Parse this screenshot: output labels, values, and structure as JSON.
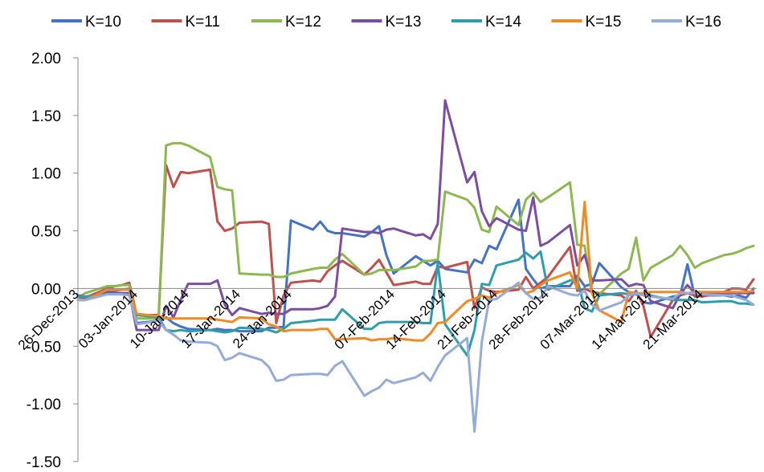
{
  "chart_data": {
    "type": "line",
    "title": "",
    "xlabel": "",
    "ylabel": "",
    "ylim": [
      -1.5,
      2.0
    ],
    "ytick_step": 0.5,
    "grid": false,
    "legend_position": "top",
    "x": [
      "2013-12-26",
      "2013-12-27",
      "2013-12-30",
      "2013-12-31",
      "2014-01-01",
      "2014-01-02",
      "2014-01-03",
      "2014-01-06",
      "2014-01-07",
      "2014-01-08",
      "2014-01-09",
      "2014-01-10",
      "2014-01-13",
      "2014-01-14",
      "2014-01-15",
      "2014-01-16",
      "2014-01-17",
      "2014-01-20",
      "2014-01-21",
      "2014-01-22",
      "2014-01-23",
      "2014-01-24",
      "2014-01-27",
      "2014-01-28",
      "2014-01-29",
      "2014-01-30",
      "2014-01-31",
      "2014-02-03",
      "2014-02-04",
      "2014-02-05",
      "2014-02-06",
      "2014-02-07",
      "2014-02-10",
      "2014-02-11",
      "2014-02-12",
      "2014-02-13",
      "2014-02-14",
      "2014-02-17",
      "2014-02-18",
      "2014-02-19",
      "2014-02-20",
      "2014-02-21",
      "2014-02-24",
      "2014-02-25",
      "2014-02-26",
      "2014-02-27",
      "2014-02-28",
      "2014-03-03",
      "2014-03-04",
      "2014-03-05",
      "2014-03-06",
      "2014-03-07",
      "2014-03-10",
      "2014-03-11",
      "2014-03-12",
      "2014-03-13",
      "2014-03-14",
      "2014-03-17",
      "2014-03-18",
      "2014-03-19",
      "2014-03-20",
      "2014-03-21",
      "2014-03-24",
      "2014-03-25",
      "2014-03-26",
      "2014-03-27",
      "2014-03-28"
    ],
    "x_tick_labels": [
      {
        "date": "2013-12-26",
        "label": "26-Dec-2013"
      },
      {
        "date": "2014-01-03",
        "label": "03-Jan-2014"
      },
      {
        "date": "2014-01-10",
        "label": "10-Jan-2014"
      },
      {
        "date": "2014-01-17",
        "label": "17-Jan-2014"
      },
      {
        "date": "2014-01-24",
        "label": "24-Jan-2014"
      },
      {
        "date": "2014-02-07",
        "label": "07-Feb-2014"
      },
      {
        "date": "2014-02-14",
        "label": "14-Feb-2014"
      },
      {
        "date": "2014-02-21",
        "label": "21-Feb-2014"
      },
      {
        "date": "2014-02-28",
        "label": "28-Feb-2014"
      },
      {
        "date": "2014-03-07",
        "label": "07-Mar-2014"
      },
      {
        "date": "2014-03-14",
        "label": "14-Mar-2014"
      },
      {
        "date": "2014-03-21",
        "label": "21-Mar-2014"
      }
    ],
    "y_tick_labels": [
      "-1.50",
      "-1.00",
      "-0.50",
      "0.00",
      "0.50",
      "1.00",
      "1.50",
      "2.00"
    ],
    "series": [
      {
        "name": "K=10",
        "color": "#4472c4",
        "values": [
          -0.07,
          -0.08,
          -0.03,
          -0.02,
          -0.01,
          0.0,
          -0.3,
          -0.28,
          -0.25,
          -0.3,
          -0.33,
          -0.35,
          -0.36,
          -0.35,
          -0.36,
          -0.36,
          -0.37,
          -0.37,
          -0.34,
          -0.34,
          -0.33,
          0.59,
          0.51,
          0.58,
          0.5,
          0.48,
          0.48,
          0.45,
          0.49,
          0.54,
          0.29,
          0.13,
          0.28,
          0.24,
          0.2,
          0.24,
          0.17,
          0.14,
          0.25,
          0.22,
          0.37,
          0.34,
          0.77,
          0.17,
          0.08,
          0.0,
          0.02,
          0.02,
          0.11,
          0.02,
          0.04,
          0.22,
          0.01,
          -0.03,
          -0.04,
          -0.12,
          -0.13,
          -0.07,
          -0.06,
          0.21,
          -0.07,
          -0.06,
          -0.06,
          -0.07,
          -0.06,
          -0.08,
          0.0
        ]
      },
      {
        "name": "K=11",
        "color": "#c0504d",
        "values": [
          -0.08,
          -0.08,
          0.0,
          0.02,
          0.03,
          0.05,
          -0.23,
          -0.23,
          1.07,
          0.88,
          1.01,
          1.0,
          1.03,
          0.58,
          0.5,
          0.52,
          0.57,
          0.58,
          0.56,
          -0.3,
          -0.06,
          0.05,
          0.07,
          0.06,
          0.15,
          0.2,
          0.24,
          0.12,
          0.18,
          0.25,
          0.14,
          0.03,
          0.06,
          0.04,
          0.04,
          0.19,
          0.18,
          0.23,
          -0.17,
          0.01,
          -0.02,
          -0.03,
          -0.01,
          0.1,
          0.0,
          0.05,
          0.1,
          0.36,
          -0.02,
          0.0,
          -0.03,
          -0.04,
          -0.06,
          -0.11,
          -0.02,
          -0.15,
          -0.42,
          -0.1,
          -0.06,
          -0.04,
          -0.06,
          -0.07,
          -0.03,
          0.0,
          0.0,
          -0.01,
          0.08
        ]
      },
      {
        "name": "K=12",
        "color": "#8cb94f",
        "values": [
          -0.08,
          -0.04,
          0.02,
          0.02,
          0.03,
          0.03,
          -0.26,
          -0.26,
          1.24,
          1.26,
          1.26,
          1.24,
          1.14,
          0.88,
          0.86,
          0.85,
          0.13,
          0.12,
          0.12,
          0.1,
          0.1,
          0.13,
          0.17,
          0.18,
          0.18,
          0.25,
          0.3,
          0.12,
          0.13,
          0.16,
          0.16,
          0.16,
          0.19,
          0.24,
          0.24,
          0.25,
          0.84,
          0.77,
          0.7,
          0.51,
          0.49,
          0.71,
          0.55,
          0.77,
          0.83,
          0.75,
          0.79,
          0.92,
          0.38,
          0.37,
          -0.04,
          -0.05,
          0.13,
          0.17,
          0.44,
          0.07,
          0.18,
          0.29,
          0.37,
          0.29,
          0.18,
          0.22,
          0.29,
          0.3,
          0.32,
          0.35,
          0.37
        ]
      },
      {
        "name": "K=13",
        "color": "#7b4ea2",
        "values": [
          -0.06,
          -0.07,
          -0.04,
          -0.04,
          -0.04,
          -0.04,
          -0.36,
          -0.36,
          -0.15,
          -0.25,
          -0.1,
          0.04,
          0.04,
          0.07,
          -0.14,
          -0.23,
          -0.17,
          -0.22,
          -0.21,
          -0.22,
          -0.22,
          -0.18,
          -0.18,
          -0.17,
          -0.15,
          -0.07,
          0.52,
          0.49,
          0.49,
          0.48,
          0.51,
          0.52,
          0.46,
          0.47,
          0.43,
          0.56,
          1.63,
          0.92,
          1.01,
          0.67,
          0.54,
          0.61,
          0.51,
          0.5,
          0.79,
          0.37,
          0.4,
          0.55,
          0.2,
          0.29,
          0.07,
          0.07,
          0.08,
          0.02,
          0.04,
          0.03,
          -0.11,
          -0.17,
          -0.05,
          0.03,
          -0.04,
          -0.04,
          -0.04,
          -0.04,
          -0.04,
          -0.04,
          -0.04
        ]
      },
      {
        "name": "K=14",
        "color": "#2e9dad",
        "values": [
          -0.07,
          -0.07,
          -0.05,
          -0.05,
          -0.05,
          -0.05,
          -0.23,
          -0.25,
          -0.36,
          -0.37,
          -0.36,
          -0.37,
          -0.36,
          -0.37,
          -0.38,
          -0.37,
          -0.34,
          -0.35,
          -0.36,
          -0.38,
          -0.35,
          -0.3,
          -0.28,
          -0.27,
          -0.27,
          -0.27,
          -0.18,
          -0.35,
          -0.35,
          -0.3,
          -0.29,
          -0.29,
          -0.29,
          -0.3,
          -0.3,
          0.22,
          -0.31,
          -0.58,
          -0.36,
          0.04,
          0.03,
          0.2,
          0.25,
          0.31,
          0.26,
          0.32,
          -0.01,
          0.07,
          0.08,
          -0.17,
          -0.2,
          -0.06,
          -0.04,
          -0.05,
          -0.05,
          -0.05,
          -0.06,
          -0.1,
          -0.1,
          -0.1,
          -0.1,
          -0.12,
          -0.11,
          -0.11,
          -0.13,
          -0.13,
          -0.14
        ]
      },
      {
        "name": "K=15",
        "color": "#f08a24",
        "values": [
          -0.1,
          -0.1,
          -0.01,
          -0.01,
          -0.01,
          -0.01,
          -0.22,
          -0.24,
          -0.26,
          -0.26,
          -0.26,
          -0.26,
          -0.26,
          -0.27,
          -0.28,
          -0.29,
          -0.25,
          -0.26,
          -0.31,
          -0.33,
          -0.37,
          -0.36,
          -0.36,
          -0.35,
          -0.35,
          -0.44,
          -0.44,
          -0.43,
          -0.45,
          -0.44,
          -0.44,
          -0.43,
          -0.45,
          -0.45,
          -0.39,
          -0.3,
          -0.29,
          -0.11,
          -0.09,
          -0.06,
          -0.08,
          -0.04,
          0.03,
          -0.04,
          -0.02,
          0.03,
          0.07,
          0.14,
          0.0,
          0.75,
          -0.04,
          -0.19,
          -0.29,
          -0.03,
          -0.04,
          -0.04,
          -0.03,
          -0.03,
          -0.03,
          -0.04,
          -0.03,
          -0.03,
          -0.03,
          -0.03,
          -0.03,
          -0.03,
          -0.02
        ]
      },
      {
        "name": "K=16",
        "color": "#95abd8",
        "values": [
          -0.1,
          -0.1,
          -0.05,
          -0.05,
          -0.05,
          -0.06,
          -0.31,
          -0.28,
          -0.36,
          -0.4,
          -0.45,
          -0.46,
          -0.47,
          -0.5,
          -0.62,
          -0.6,
          -0.56,
          -0.62,
          -0.68,
          -0.8,
          -0.79,
          -0.75,
          -0.74,
          -0.74,
          -0.75,
          -0.67,
          -0.63,
          -0.93,
          -0.89,
          -0.86,
          -0.79,
          -0.82,
          -0.77,
          -0.73,
          -0.8,
          -0.68,
          -0.58,
          -0.43,
          -1.24,
          -0.46,
          -0.1,
          -0.09,
          0.05,
          -0.04,
          -0.09,
          -0.08,
          0.02,
          -0.05,
          -0.06,
          -0.02,
          -0.14,
          -0.19,
          -0.12,
          -0.06,
          -0.04,
          -0.06,
          -0.07,
          -0.09,
          -0.04,
          -0.04,
          -0.04,
          -0.05,
          -0.06,
          -0.06,
          -0.08,
          -0.1,
          -0.14
        ]
      }
    ]
  }
}
